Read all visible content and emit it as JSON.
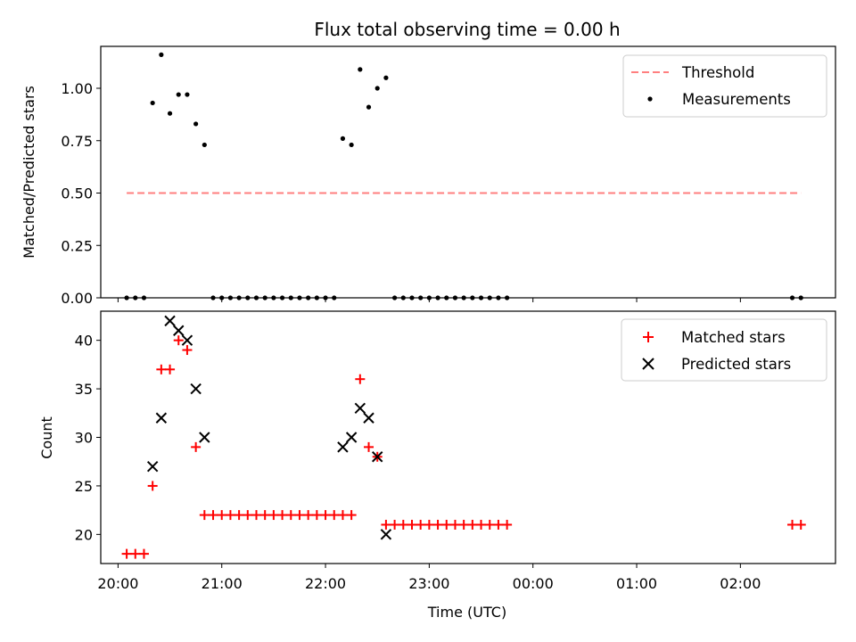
{
  "chart_data": [
    {
      "type": "scatter",
      "title": "Flux total observing time = 0.00 h",
      "xlabel": "",
      "ylabel": "Matched/Predicted stars",
      "ylim": [
        0,
        1.2
      ],
      "yticks": [
        0.0,
        0.25,
        0.5,
        0.75,
        1.0
      ],
      "ytick_labels": [
        "0.00",
        "0.25",
        "0.50",
        "0.75",
        "1.00"
      ],
      "legend_position": "top-right",
      "threshold": {
        "name": "Threshold",
        "value": 0.5,
        "x_start": "20:05",
        "x_end": "02:35",
        "color": "#ff7f7f"
      },
      "series": [
        {
          "name": "Measurements",
          "color": "#000000",
          "x": [
            "20:05",
            "20:10",
            "20:15",
            "20:20",
            "20:25",
            "20:30",
            "20:35",
            "20:40",
            "20:45",
            "20:50",
            "20:55",
            "21:00",
            "21:05",
            "21:10",
            "21:15",
            "21:20",
            "21:25",
            "21:30",
            "21:35",
            "21:40",
            "21:45",
            "21:50",
            "21:55",
            "22:00",
            "22:05",
            "22:10",
            "22:15",
            "22:20",
            "22:25",
            "22:30",
            "22:35",
            "22:40",
            "22:45",
            "22:50",
            "22:55",
            "23:00",
            "23:05",
            "23:10",
            "23:15",
            "23:20",
            "23:25",
            "23:30",
            "23:35",
            "23:40",
            "23:45",
            "02:30",
            "02:35"
          ],
          "y": [
            0,
            0,
            0,
            0.93,
            1.16,
            0.88,
            0.97,
            0.97,
            0.83,
            0.73,
            0,
            0,
            0,
            0,
            0,
            0,
            0,
            0,
            0,
            0,
            0,
            0,
            0,
            0,
            0,
            0.76,
            0.73,
            1.09,
            0.91,
            1.0,
            1.05,
            0,
            0,
            0,
            0,
            0,
            0,
            0,
            0,
            0,
            0,
            0,
            0,
            0,
            0,
            0,
            0
          ]
        }
      ]
    },
    {
      "type": "scatter",
      "title": "",
      "xlabel": "Time (UTC)",
      "ylabel": "Count",
      "ylim": [
        17,
        43
      ],
      "yticks": [
        20,
        25,
        30,
        35,
        40
      ],
      "xlim": [
        "19:50",
        "02:55"
      ],
      "xticks": [
        "20:00",
        "21:00",
        "22:00",
        "23:00",
        "00:00",
        "01:00",
        "02:00"
      ],
      "legend_position": "top-right",
      "series": [
        {
          "name": "Matched stars",
          "marker": "+",
          "color": "#ff0000",
          "x": [
            "20:05",
            "20:10",
            "20:15",
            "20:20",
            "20:25",
            "20:30",
            "20:35",
            "20:40",
            "20:45",
            "20:50",
            "20:55",
            "21:00",
            "21:05",
            "21:10",
            "21:15",
            "21:20",
            "21:25",
            "21:30",
            "21:35",
            "21:40",
            "21:45",
            "21:50",
            "21:55",
            "22:00",
            "22:05",
            "22:10",
            "22:15",
            "22:20",
            "22:25",
            "22:30",
            "22:35",
            "22:40",
            "22:45",
            "22:50",
            "22:55",
            "23:00",
            "23:05",
            "23:10",
            "23:15",
            "23:20",
            "23:25",
            "23:30",
            "23:35",
            "23:40",
            "23:45",
            "02:30",
            "02:35"
          ],
          "y": [
            18,
            18,
            18,
            25,
            37,
            37,
            40,
            39,
            29,
            22,
            22,
            22,
            22,
            22,
            22,
            22,
            22,
            22,
            22,
            22,
            22,
            22,
            22,
            22,
            22,
            22,
            22,
            36,
            29,
            28,
            21,
            21,
            21,
            21,
            21,
            21,
            21,
            21,
            21,
            21,
            21,
            21,
            21,
            21,
            21,
            21,
            21
          ]
        },
        {
          "name": "Predicted stars",
          "marker": "x",
          "color": "#000000",
          "x": [
            "20:20",
            "20:25",
            "20:30",
            "20:35",
            "20:40",
            "20:45",
            "20:50",
            "22:10",
            "22:15",
            "22:20",
            "22:25",
            "22:30",
            "22:35"
          ],
          "y": [
            27,
            32,
            42,
            41,
            40,
            35,
            30,
            29,
            30,
            33,
            32,
            28,
            20
          ]
        }
      ]
    }
  ]
}
